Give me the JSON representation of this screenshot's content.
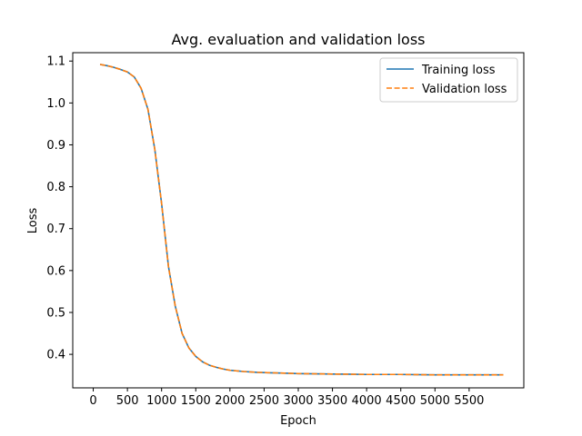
{
  "chart_data": {
    "type": "line",
    "title": "Avg. evaluation and validation loss",
    "xlabel": "Epoch",
    "ylabel": "Loss",
    "xlim": [
      -300,
      6300
    ],
    "ylim": [
      0.32,
      1.12
    ],
    "xticks": [
      0,
      500,
      1000,
      1500,
      2000,
      2500,
      3000,
      3500,
      4000,
      4500,
      5000,
      5500
    ],
    "yticks": [
      0.4,
      0.5,
      0.6,
      0.7,
      0.8,
      0.9,
      1.0,
      1.1
    ],
    "ytick_labels": [
      "0.4",
      "0.5",
      "0.6",
      "0.7",
      "0.8",
      "0.9",
      "1.0",
      "1.1"
    ],
    "grid": false,
    "legend_position": "top-right",
    "series": [
      {
        "name": "Training loss",
        "color": "#1f77b4",
        "style": "solid",
        "x": [
          100,
          200,
          300,
          400,
          500,
          600,
          700,
          800,
          900,
          1000,
          1100,
          1200,
          1300,
          1400,
          1500,
          1600,
          1700,
          1800,
          1900,
          2000,
          2200,
          2400,
          2600,
          2800,
          3000,
          3500,
          4000,
          4500,
          5000,
          5500,
          6000
        ],
        "values": [
          1.092,
          1.089,
          1.085,
          1.08,
          1.074,
          1.062,
          1.035,
          0.985,
          0.89,
          0.76,
          0.61,
          0.515,
          0.45,
          0.415,
          0.395,
          0.382,
          0.374,
          0.369,
          0.365,
          0.362,
          0.359,
          0.357,
          0.356,
          0.355,
          0.354,
          0.353,
          0.352,
          0.352,
          0.351,
          0.351,
          0.351
        ]
      },
      {
        "name": "Validation loss",
        "color": "#ff7f0e",
        "style": "dashed",
        "x": [
          100,
          200,
          300,
          400,
          500,
          600,
          700,
          800,
          900,
          1000,
          1100,
          1200,
          1300,
          1400,
          1500,
          1600,
          1700,
          1800,
          1900,
          2000,
          2200,
          2400,
          2600,
          2800,
          3000,
          3500,
          4000,
          4500,
          5000,
          5500,
          6000
        ],
        "values": [
          1.092,
          1.089,
          1.085,
          1.08,
          1.074,
          1.062,
          1.035,
          0.985,
          0.89,
          0.76,
          0.61,
          0.515,
          0.45,
          0.415,
          0.395,
          0.382,
          0.374,
          0.369,
          0.365,
          0.362,
          0.359,
          0.357,
          0.356,
          0.355,
          0.354,
          0.353,
          0.352,
          0.352,
          0.351,
          0.351,
          0.351
        ]
      }
    ]
  }
}
